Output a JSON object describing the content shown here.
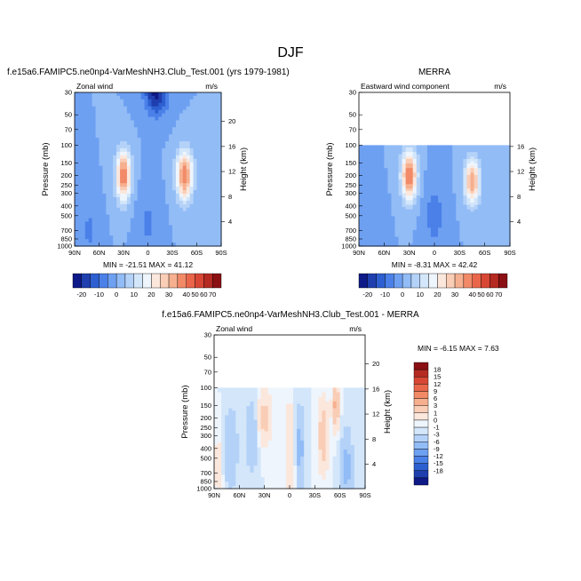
{
  "figure": {
    "title": "DJF"
  },
  "chart_data": [
    {
      "type": "heatmap",
      "id": "model",
      "title": "f.e15a6.FAMIPC5.ne0np4-VarMeshNH3.Club_Test.001 (yrs 1979-1981)",
      "left_label": "Zonal wind",
      "right_label": "m/s",
      "xlabel": "",
      "ylabel": "Pressure (mb)",
      "ylabel_right": "Height (km)",
      "x_ticks": [
        "90N",
        "60N",
        "30N",
        "0",
        "30S",
        "60S",
        "90S"
      ],
      "y_ticks": [
        "30",
        "50",
        "70",
        "100",
        "150",
        "200",
        "250",
        "300",
        "400",
        "500",
        "700",
        "850",
        "1000"
      ],
      "height_ticks": [
        "4",
        "8",
        "12",
        "16",
        "20"
      ],
      "stats": "MIN = -21.51   MAX = 41.12",
      "ylim_mb": [
        1000,
        30
      ],
      "data_top_mb": 30,
      "features": [
        {
          "lat": 30,
          "p": 200,
          "amp": 41,
          "wlat": 9,
          "wz": 0.55
        },
        {
          "lat": -45,
          "p": 200,
          "amp": 40,
          "wlat": 10,
          "wz": 0.55
        },
        {
          "lat": -10,
          "p": 30,
          "amp": -22,
          "wlat": 14,
          "wz": 0.5
        },
        {
          "lat": 72,
          "p": 700,
          "amp": -6,
          "wlat": 10,
          "wz": 0.6
        },
        {
          "lat": 0,
          "p": 600,
          "amp": -6,
          "wlat": 12,
          "wz": 0.7
        }
      ]
    },
    {
      "type": "heatmap",
      "id": "obs",
      "title": "MERRA",
      "left_label": "Eastward wind component",
      "right_label": "m/s",
      "xlabel": "",
      "ylabel": "Pressure (mb)",
      "ylabel_right": "Height (km)",
      "x_ticks": [
        "90N",
        "60N",
        "30N",
        "0",
        "30S",
        "60S",
        "90S"
      ],
      "y_ticks": [
        "30",
        "50",
        "70",
        "100",
        "150",
        "200",
        "250",
        "300",
        "400",
        "500",
        "700",
        "850",
        "1000"
      ],
      "height_ticks": [
        "4",
        "8",
        "12",
        "16"
      ],
      "stats": "MIN = -8.31   MAX = 42.42",
      "ylim_mb": [
        1000,
        30
      ],
      "data_top_mb": 100,
      "features": [
        {
          "lat": 30,
          "p": 200,
          "amp": 42,
          "wlat": 9,
          "wz": 0.55
        },
        {
          "lat": -45,
          "p": 230,
          "amp": 35,
          "wlat": 9,
          "wz": 0.5
        },
        {
          "lat": 0,
          "p": 500,
          "amp": -8,
          "wlat": 12,
          "wz": 0.7
        },
        {
          "lat": 72,
          "p": 700,
          "amp": -5,
          "wlat": 10,
          "wz": 0.6
        }
      ]
    },
    {
      "type": "heatmap",
      "id": "diff",
      "title": "f.e15a6.FAMIPC5.ne0np4-VarMeshNH3.Club_Test.001 - MERRA",
      "left_label": "Zonal wind",
      "right_label": "m/s",
      "xlabel": "",
      "ylabel": "Pressure (mb)",
      "ylabel_right": "Height (km)",
      "x_ticks": [
        "90N",
        "60N",
        "30N",
        "0",
        "30S",
        "60S",
        "90S"
      ],
      "y_ticks": [
        "30",
        "50",
        "70",
        "100",
        "150",
        "200",
        "250",
        "300",
        "400",
        "500",
        "700",
        "850",
        "1000"
      ],
      "height_ticks": [
        "4",
        "8",
        "12",
        "16",
        "20"
      ],
      "stats": "MIN = -6.15  MAX =  7.63",
      "ylim_mb": [
        1000,
        30
      ],
      "data_top_mb": 100,
      "features": [
        {
          "lat": 30,
          "p": 200,
          "amp": 4,
          "wlat": 8,
          "wz": 0.6
        },
        {
          "lat": 45,
          "p": 300,
          "amp": -3,
          "wlat": 7,
          "wz": 0.8
        },
        {
          "lat": 0,
          "p": 250,
          "amp": 3,
          "wlat": 5,
          "wz": 0.6
        },
        {
          "lat": -2,
          "p": 700,
          "amp": 3,
          "wlat": 5,
          "wz": 0.6
        },
        {
          "lat": -12,
          "p": 400,
          "amp": -4,
          "wlat": 6,
          "wz": 0.9
        },
        {
          "lat": -40,
          "p": 300,
          "amp": 5,
          "wlat": 6,
          "wz": 0.8
        },
        {
          "lat": -55,
          "p": 150,
          "amp": 7,
          "wlat": 4,
          "wz": 0.5
        },
        {
          "lat": -68,
          "p": 600,
          "amp": -4,
          "wlat": 7,
          "wz": 0.8
        },
        {
          "lat": 70,
          "p": 400,
          "amp": -3,
          "wlat": 8,
          "wz": 0.9
        },
        {
          "lat": 85,
          "p": 600,
          "amp": 2,
          "wlat": 5,
          "wz": 0.8
        }
      ]
    }
  ],
  "colorbars": {
    "main": {
      "colors": [
        "#0e1a87",
        "#1f3fae",
        "#2d5fd0",
        "#4a80e8",
        "#6ea0f2",
        "#92bcf6",
        "#b4d2f8",
        "#d3e6fa",
        "#eef5fd",
        "#fbe7dc",
        "#f9cdb6",
        "#f6b08f",
        "#f28a68",
        "#e9664a",
        "#d84734",
        "#b52a22",
        "#8a1014"
      ],
      "levels": [
        -20,
        -15,
        -10,
        -5,
        0,
        5,
        10,
        15,
        20,
        25,
        30,
        35,
        40,
        50,
        60,
        70
      ],
      "labels": [
        "-20",
        "-10",
        "0",
        "10",
        "20",
        "30",
        "40",
        "50",
        "60",
        "70"
      ]
    },
    "diff": {
      "colors": [
        "#0e1a87",
        "#1f3fae",
        "#2d5fd0",
        "#4a80e8",
        "#6ea0f2",
        "#92bcf6",
        "#b4d2f8",
        "#d3e6fa",
        "#eef5fd",
        "#fbe7dc",
        "#f9cdb6",
        "#f6b08f",
        "#f28a68",
        "#e9664a",
        "#d84734",
        "#b52a22",
        "#8a1014"
      ],
      "levels": [
        -18,
        -15,
        -12,
        -9,
        -6,
        -3,
        -1,
        0,
        1,
        3,
        6,
        9,
        12,
        15,
        18
      ],
      "labels": [
        "18",
        "15",
        "12",
        "9",
        "6",
        "3",
        "1",
        "0",
        "-1",
        "-3",
        "-6",
        "-9",
        "-12",
        "-15",
        "-18"
      ]
    }
  }
}
